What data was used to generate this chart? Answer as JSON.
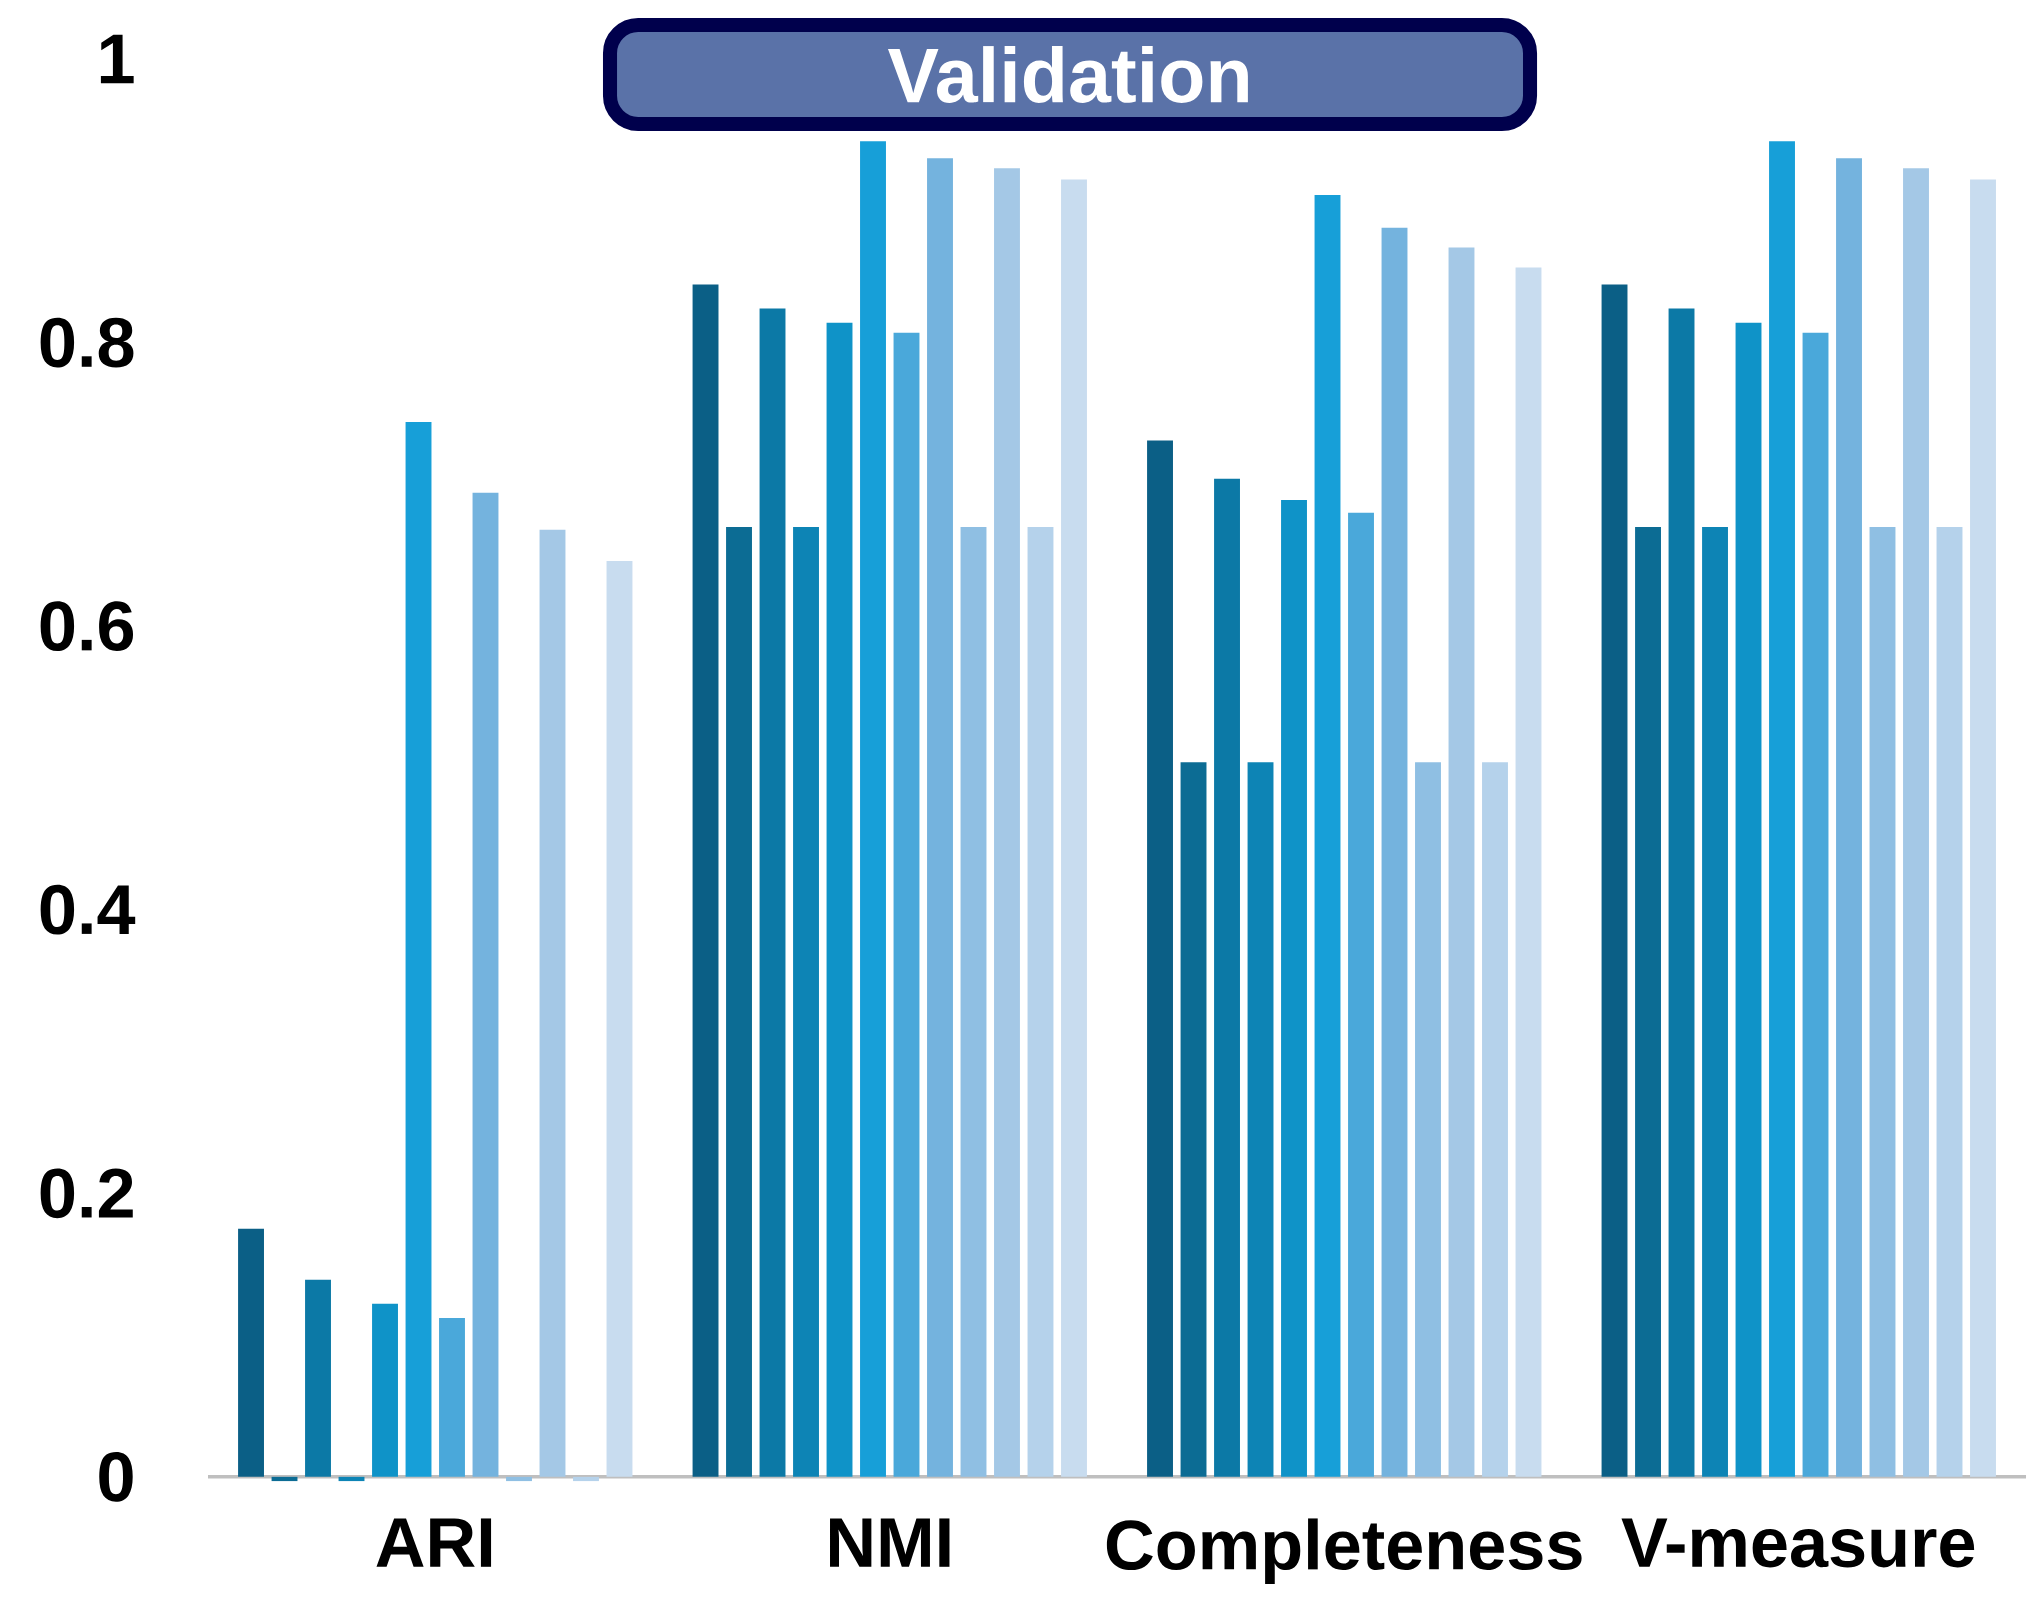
{
  "chart_data": {
    "type": "bar",
    "title": "Validation",
    "categories": [
      "ARI",
      "NMI",
      "Completeness",
      "V-measure"
    ],
    "ylim": [
      -0.01,
      1
    ],
    "yticks": [
      0,
      0.2,
      0.4,
      0.6,
      0.8,
      1
    ],
    "series": [
      {
        "color": "#0b5f86",
        "values": [
          0.175,
          0.841,
          0.731,
          0.841
        ]
      },
      {
        "color": "#0c6c94",
        "values": [
          -0.003,
          0.67,
          0.504,
          0.67
        ]
      },
      {
        "color": "#0c79a6",
        "values": [
          0.139,
          0.824,
          0.704,
          0.824
        ]
      },
      {
        "color": "#0d84b5",
        "values": [
          -0.003,
          0.67,
          0.504,
          0.67
        ]
      },
      {
        "color": "#0f93c8",
        "values": [
          0.122,
          0.814,
          0.689,
          0.814
        ]
      },
      {
        "color": "#179fd8",
        "values": [
          0.744,
          0.942,
          0.904,
          0.942
        ]
      },
      {
        "color": "#4aa8da",
        "values": [
          0.112,
          0.807,
          0.68,
          0.807
        ]
      },
      {
        "color": "#74b3de",
        "values": [
          0.694,
          0.93,
          0.881,
          0.93
        ]
      },
      {
        "color": "#8fbfe3",
        "values": [
          -0.003,
          0.67,
          0.504,
          0.67
        ]
      },
      {
        "color": "#a4c8e6",
        "values": [
          0.668,
          0.923,
          0.867,
          0.923
        ]
      },
      {
        "color": "#b5d2eb",
        "values": [
          -0.003,
          0.67,
          0.504,
          0.67
        ]
      },
      {
        "color": "#c8dcef",
        "values": [
          0.646,
          0.915,
          0.853,
          0.915
        ]
      }
    ]
  }
}
